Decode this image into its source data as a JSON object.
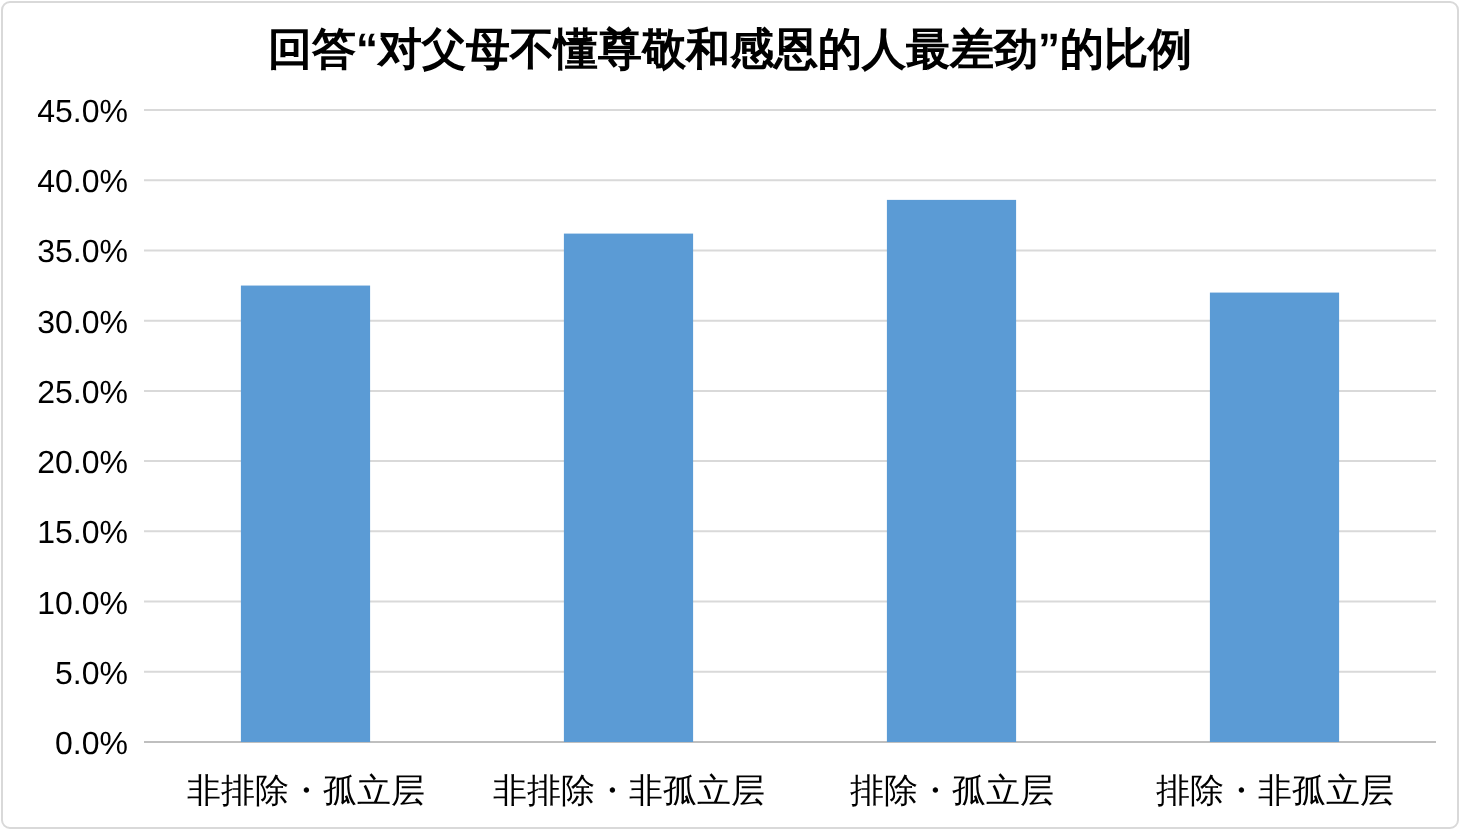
{
  "chart_data": {
    "type": "bar",
    "title": "回答“对父母不懂尊敬和感恩的人最差劲”的比例",
    "categories": [
      "非排除・孤立层",
      "非排除・非孤立层",
      "排除・孤立层",
      "排除・非孤立层"
    ],
    "values": [
      32.5,
      36.2,
      38.6,
      32.0
    ],
    "color": "#5b9bd5",
    "ylim": [
      0,
      45
    ],
    "yticks": [
      {
        "value": 0,
        "label": "0.0%"
      },
      {
        "value": 5,
        "label": "5.0%"
      },
      {
        "value": 10,
        "label": "10.0%"
      },
      {
        "value": 15,
        "label": "15.0%"
      },
      {
        "value": 20,
        "label": "20.0%"
      },
      {
        "value": 25,
        "label": "25.0%"
      },
      {
        "value": 30,
        "label": "30.0%"
      },
      {
        "value": 35,
        "label": "35.0%"
      },
      {
        "value": 40,
        "label": "40.0%"
      },
      {
        "value": 45,
        "label": "45.0%"
      }
    ],
    "grid": "y"
  }
}
